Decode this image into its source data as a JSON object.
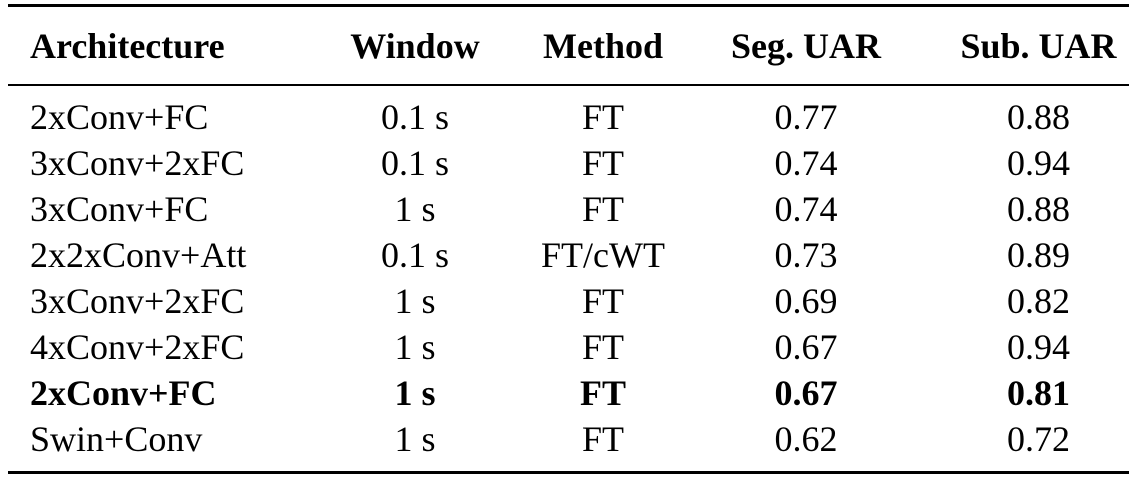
{
  "table": {
    "headers": [
      "Architecture",
      "Window",
      "Method",
      "Seg. UAR",
      "Sub. UAR"
    ],
    "rows": [
      {
        "architecture": "2xConv+FC",
        "window": "0.1 s",
        "method": "FT",
        "seg_uar": "0.77",
        "sub_uar": "0.88",
        "bold": false
      },
      {
        "architecture": "3xConv+2xFC",
        "window": "0.1 s",
        "method": "FT",
        "seg_uar": "0.74",
        "sub_uar": "0.94",
        "bold": false
      },
      {
        "architecture": "3xConv+FC",
        "window": "1 s",
        "method": "FT",
        "seg_uar": "0.74",
        "sub_uar": "0.88",
        "bold": false
      },
      {
        "architecture": "2x2xConv+Att",
        "window": "0.1 s",
        "method": "FT/cWT",
        "seg_uar": "0.73",
        "sub_uar": "0.89",
        "bold": false
      },
      {
        "architecture": "3xConv+2xFC",
        "window": "1 s",
        "method": "FT",
        "seg_uar": "0.69",
        "sub_uar": "0.82",
        "bold": false
      },
      {
        "architecture": "4xConv+2xFC",
        "window": "1 s",
        "method": "FT",
        "seg_uar": "0.67",
        "sub_uar": "0.94",
        "bold": false
      },
      {
        "architecture": "2xConv+FC",
        "window": "1 s",
        "method": "FT",
        "seg_uar": "0.67",
        "sub_uar": "0.81",
        "bold": true
      },
      {
        "architecture": "Swin+Conv",
        "window": "1 s",
        "method": "FT",
        "seg_uar": "0.62",
        "sub_uar": "0.72",
        "bold": false
      }
    ]
  }
}
